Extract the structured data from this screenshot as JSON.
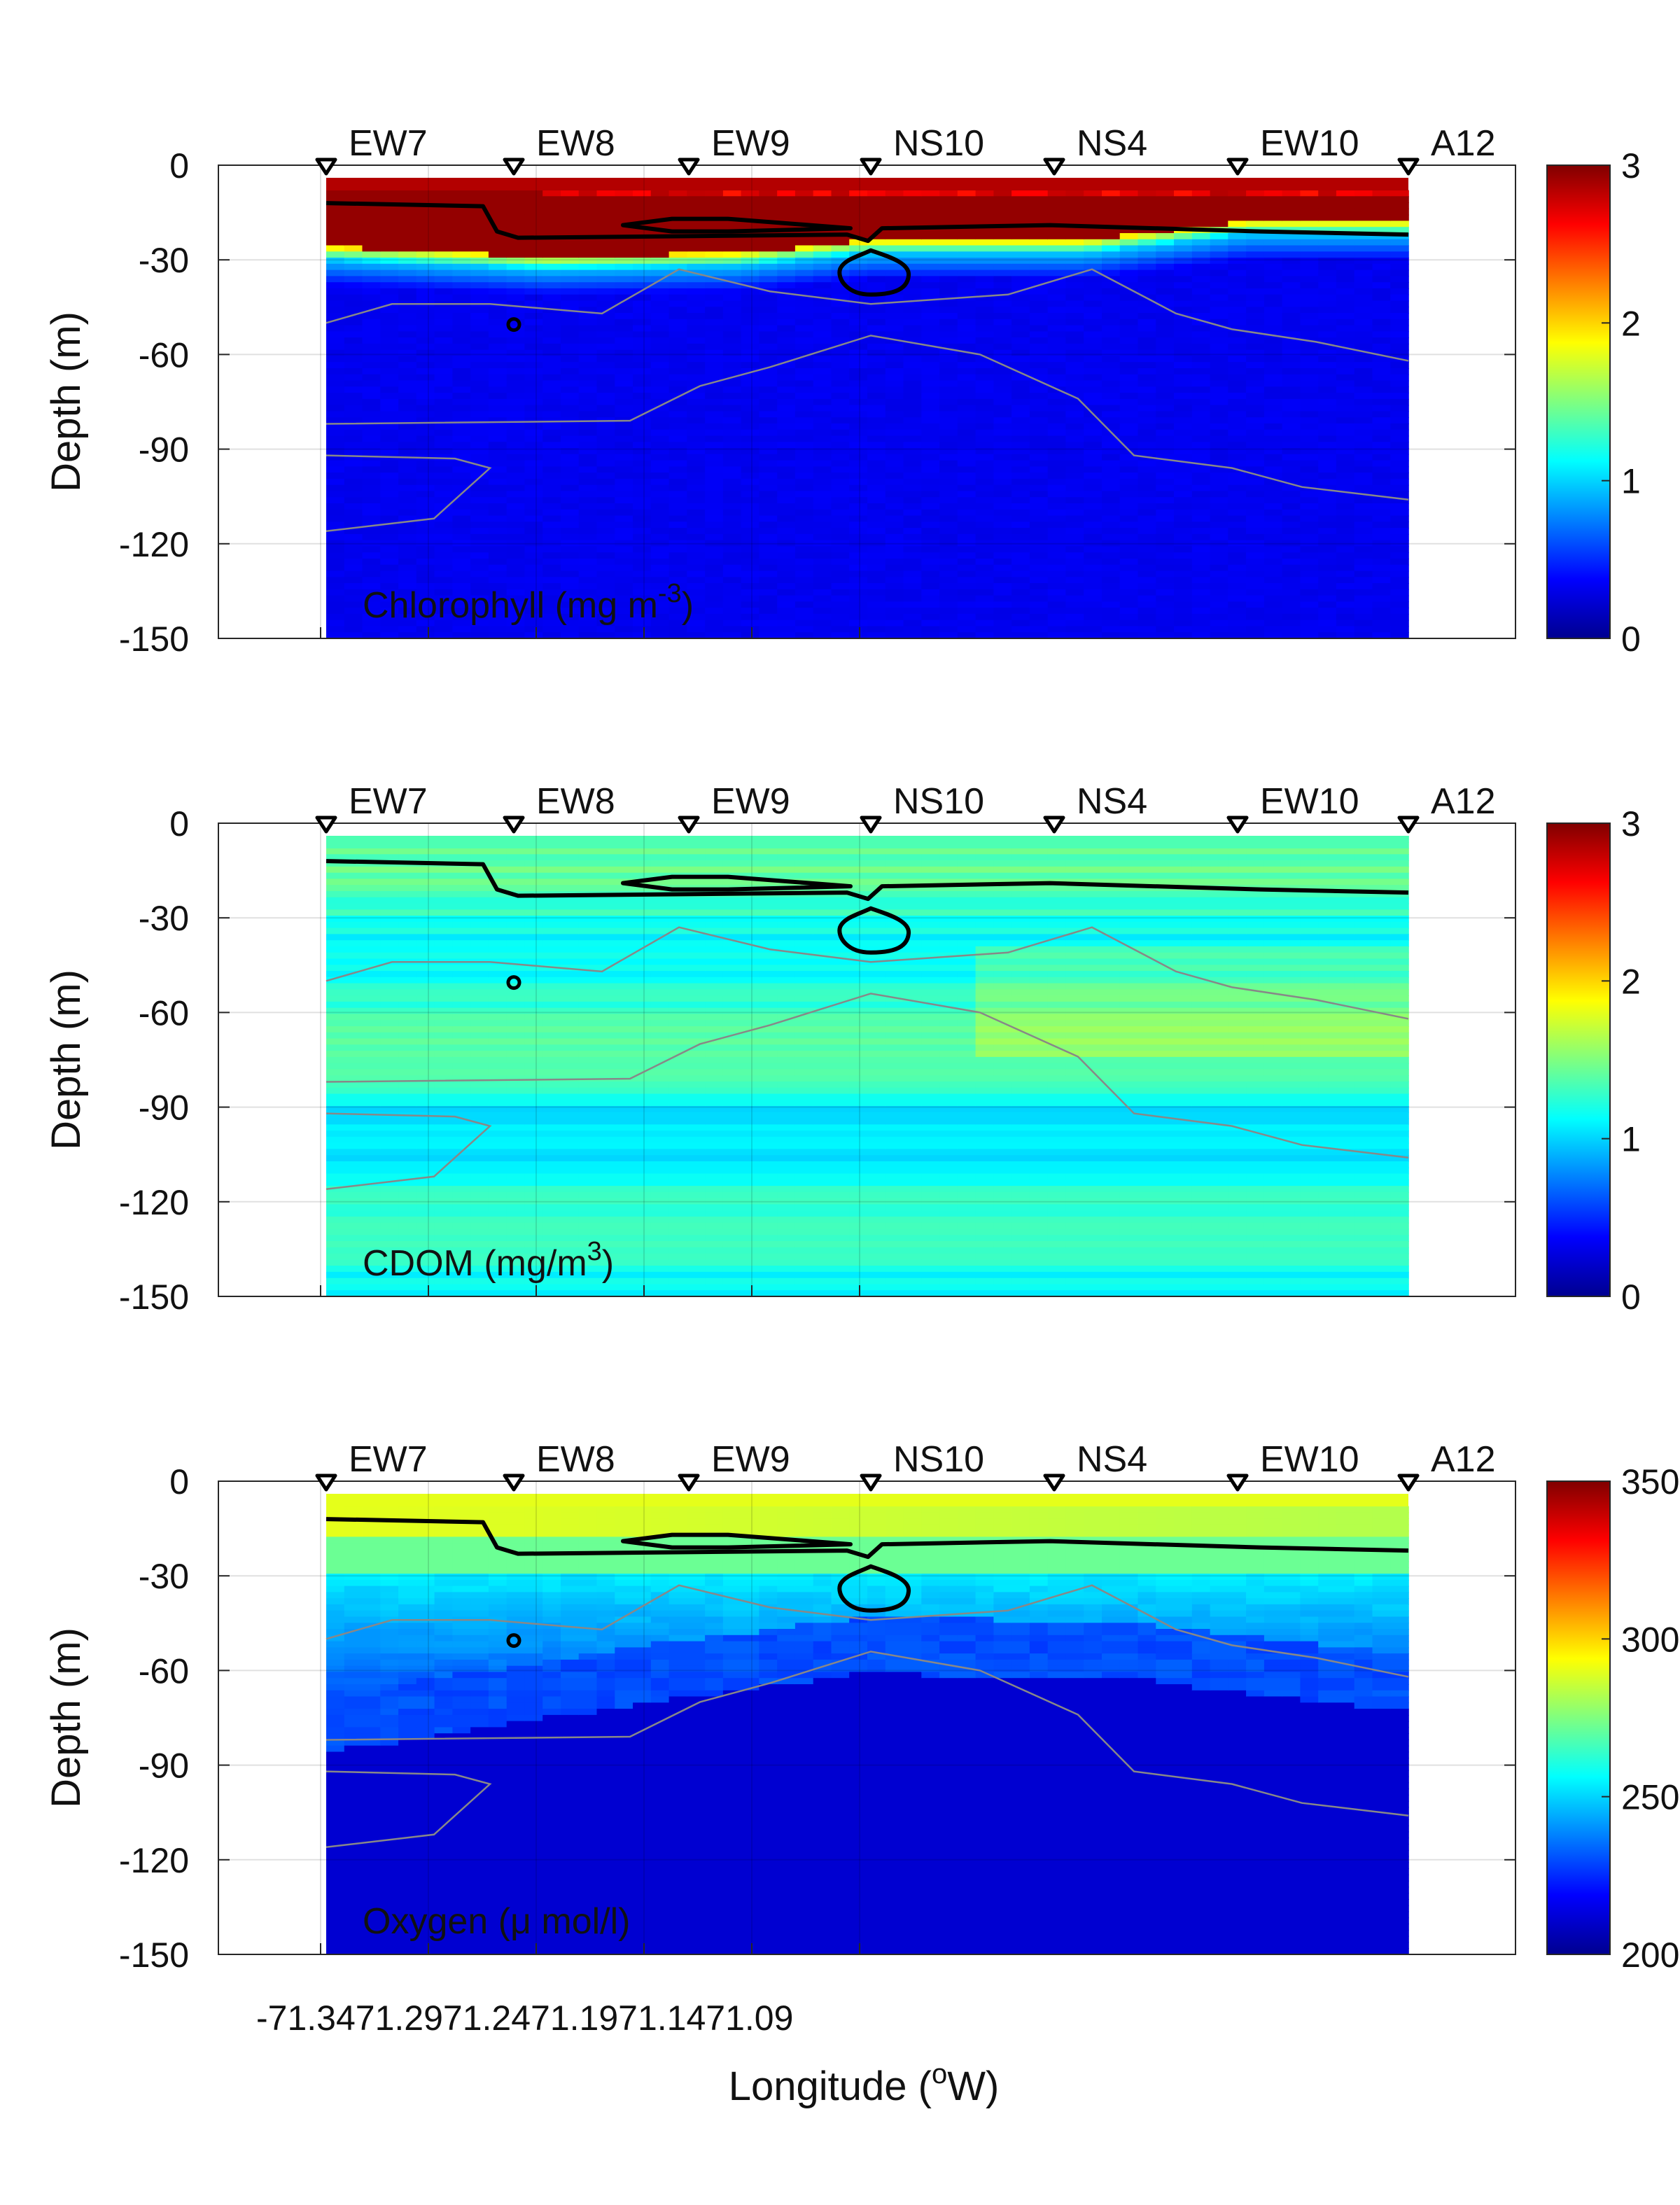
{
  "x_tick_labels": [
    "-71.34",
    "71.29",
    "71.24",
    "71.19",
    "71.14",
    "71.09"
  ],
  "chart_data": [
    {
      "type": "heatmap",
      "label": "Chlorophyll (mg m",
      "label_sup": "-3",
      "label_tail": ")",
      "ylabel": "Depth (m)",
      "yticks": [
        0,
        -30,
        -60,
        -90,
        -120,
        -150
      ],
      "ylim": [
        -150,
        0
      ],
      "colorbar": {
        "min": 0,
        "max": 3,
        "ticks": [
          "0",
          "1",
          "2",
          "3"
        ],
        "colormap": "jet"
      },
      "stations": [
        "EW7",
        "EW8",
        "EW9",
        "NS10",
        "NS4",
        "EW10",
        "A12"
      ],
      "field": "chlorophyll"
    },
    {
      "type": "heatmap",
      "label": "CDOM (mg/m",
      "label_sup": "3",
      "label_tail": ")",
      "ylabel": "Depth (m)",
      "yticks": [
        0,
        -30,
        -60,
        -90,
        -120,
        -150
      ],
      "ylim": [
        -150,
        0
      ],
      "colorbar": {
        "min": 0,
        "max": 3,
        "ticks": [
          "0",
          "1",
          "2",
          "3"
        ],
        "colormap": "jet"
      },
      "stations": [
        "EW7",
        "EW8",
        "EW9",
        "NS10",
        "NS4",
        "EW10",
        "A12"
      ],
      "field": "cdom"
    },
    {
      "type": "heatmap",
      "label": "Oxygen (μ mol/l)",
      "label_sup": "",
      "label_tail": "",
      "ylabel": "Depth (m)",
      "yticks": [
        0,
        -30,
        -60,
        -90,
        -120,
        -150
      ],
      "ylim": [
        -150,
        0
      ],
      "colorbar": {
        "min": 200,
        "max": 350,
        "ticks": [
          "200",
          "250",
          "300",
          "350"
        ],
        "colormap": "jet"
      },
      "stations": [
        "EW7",
        "EW8",
        "EW9",
        "NS10",
        "NS4",
        "EW10",
        "A12"
      ],
      "field": "oxygen"
    }
  ],
  "xlabel": "Longitude (",
  "xlabel_sup": "o",
  "xlabel_tail": "W)"
}
